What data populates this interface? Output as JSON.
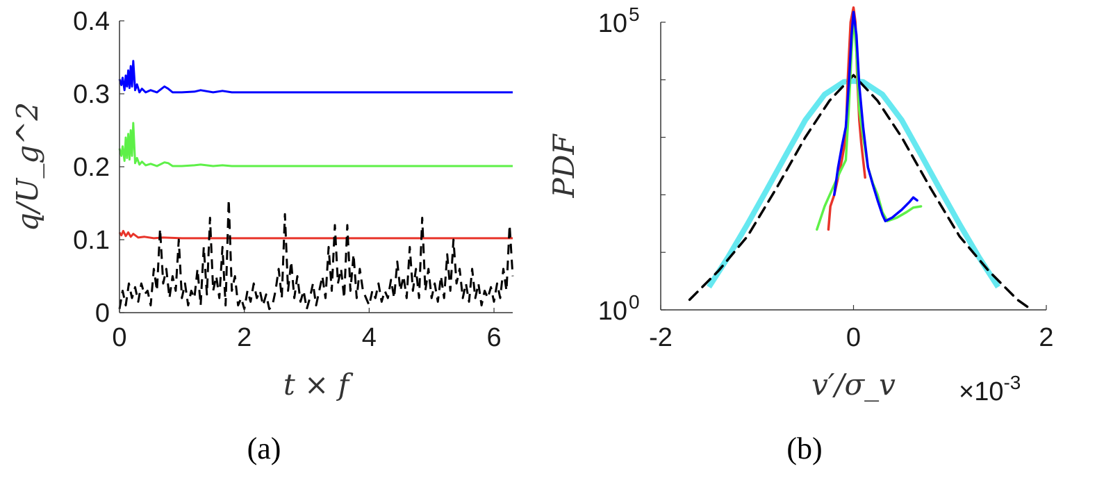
{
  "chart_data": [
    {
      "type": "line",
      "panel_label": "(a)",
      "xlabel": "t × f",
      "ylabel": "q/U_g^2",
      "xlim": [
        0,
        6.3
      ],
      "ylim": [
        0,
        0.4
      ],
      "xticks": [
        "0",
        "2",
        "4",
        "6"
      ],
      "yticks": [
        "0",
        "0.1",
        "0.2",
        "0.3",
        "0.4"
      ],
      "legend": "none",
      "grid": false,
      "series": [
        {
          "color": "#0000ff",
          "style": "solid",
          "x": [
            0,
            0.03,
            0.05,
            0.08,
            0.1,
            0.12,
            0.14,
            0.16,
            0.18,
            0.2,
            0.22,
            0.25,
            0.28,
            0.32,
            0.36,
            0.42,
            0.5,
            0.6,
            0.72,
            0.78,
            0.85,
            1.0,
            1.2,
            1.3,
            1.5,
            1.65,
            1.8,
            2.0,
            2.5,
            3.0,
            3.5,
            4.0,
            4.5,
            5.0,
            5.5,
            6.0,
            6.3
          ],
          "y": [
            0.32,
            0.312,
            0.322,
            0.305,
            0.325,
            0.31,
            0.332,
            0.308,
            0.338,
            0.31,
            0.345,
            0.305,
            0.313,
            0.302,
            0.307,
            0.302,
            0.305,
            0.302,
            0.31,
            0.307,
            0.302,
            0.302,
            0.303,
            0.305,
            0.302,
            0.304,
            0.302,
            0.302,
            0.302,
            0.302,
            0.302,
            0.302,
            0.302,
            0.302,
            0.302,
            0.302,
            0.302
          ]
        },
        {
          "color": "#5ef048",
          "style": "solid",
          "x": [
            0,
            0.03,
            0.05,
            0.08,
            0.1,
            0.12,
            0.14,
            0.16,
            0.18,
            0.2,
            0.22,
            0.25,
            0.28,
            0.32,
            0.36,
            0.42,
            0.5,
            0.6,
            0.72,
            0.78,
            0.85,
            1.0,
            1.2,
            1.3,
            1.5,
            1.65,
            1.8,
            2.0,
            2.5,
            3.0,
            3.5,
            4.0,
            4.5,
            5.0,
            5.5,
            6.0,
            6.3
          ],
          "y": [
            0.225,
            0.215,
            0.228,
            0.208,
            0.24,
            0.212,
            0.245,
            0.21,
            0.25,
            0.215,
            0.26,
            0.205,
            0.212,
            0.203,
            0.207,
            0.202,
            0.204,
            0.201,
            0.206,
            0.205,
            0.201,
            0.201,
            0.202,
            0.203,
            0.201,
            0.202,
            0.201,
            0.201,
            0.201,
            0.201,
            0.201,
            0.201,
            0.201,
            0.201,
            0.201,
            0.201,
            0.201
          ]
        },
        {
          "color": "#e8342a",
          "style": "solid",
          "x": [
            0,
            0.03,
            0.06,
            0.1,
            0.14,
            0.18,
            0.22,
            0.3,
            0.4,
            0.55,
            0.7,
            1.0,
            1.5,
            2.0,
            2.5,
            3.0,
            3.5,
            4.0,
            4.5,
            5.0,
            5.5,
            6.0,
            6.3
          ],
          "y": [
            0.11,
            0.106,
            0.112,
            0.105,
            0.11,
            0.104,
            0.108,
            0.103,
            0.104,
            0.102,
            0.103,
            0.102,
            0.102,
            0.102,
            0.102,
            0.102,
            0.102,
            0.102,
            0.102,
            0.102,
            0.102,
            0.102,
            0.102
          ]
        },
        {
          "color": "#000000",
          "style": "dashed",
          "x": [
            0.0,
            0.05,
            0.1,
            0.15,
            0.2,
            0.25,
            0.3,
            0.35,
            0.4,
            0.45,
            0.5,
            0.55,
            0.6,
            0.65,
            0.7,
            0.75,
            0.8,
            0.85,
            0.9,
            0.95,
            1.0,
            1.05,
            1.1,
            1.15,
            1.2,
            1.25,
            1.3,
            1.35,
            1.4,
            1.45,
            1.5,
            1.55,
            1.6,
            1.65,
            1.7,
            1.75,
            1.8,
            1.85,
            1.9,
            1.95,
            2.0,
            2.05,
            2.1,
            2.15,
            2.2,
            2.25,
            2.3,
            2.35,
            2.4,
            2.45,
            2.5,
            2.55,
            2.6,
            2.65,
            2.7,
            2.75,
            2.8,
            2.85,
            2.9,
            2.95,
            3.0,
            3.05,
            3.1,
            3.15,
            3.2,
            3.25,
            3.3,
            3.35,
            3.4,
            3.45,
            3.5,
            3.55,
            3.6,
            3.65,
            3.7,
            3.75,
            3.8,
            3.85,
            3.9,
            3.95,
            4.0,
            4.05,
            4.1,
            4.15,
            4.2,
            4.25,
            4.3,
            4.35,
            4.4,
            4.45,
            4.5,
            4.55,
            4.6,
            4.65,
            4.7,
            4.75,
            4.8,
            4.85,
            4.9,
            4.95,
            5.0,
            5.05,
            5.1,
            5.15,
            5.2,
            5.25,
            5.3,
            5.35,
            5.4,
            5.45,
            5.5,
            5.55,
            5.6,
            5.65,
            5.7,
            5.75,
            5.8,
            5.85,
            5.9,
            5.95,
            6.0,
            6.05,
            6.1,
            6.15,
            6.2,
            6.25,
            6.3
          ],
          "y": [
            0.005,
            0.03,
            0.01,
            0.04,
            0.02,
            0.035,
            0.015,
            0.04,
            0.025,
            0.03,
            0.01,
            0.06,
            0.03,
            0.115,
            0.04,
            0.06,
            0.02,
            0.05,
            0.03,
            0.1,
            0.02,
            0.04,
            0.01,
            0.03,
            0.02,
            0.06,
            0.01,
            0.09,
            0.025,
            0.13,
            0.03,
            0.05,
            0.02,
            0.09,
            0.01,
            0.155,
            0.03,
            0.05,
            0.01,
            0.02,
            0.005,
            0.03,
            0.015,
            0.04,
            0.02,
            0.03,
            0.01,
            0.025,
            0.005,
            0.01,
            0.03,
            0.06,
            0.02,
            0.135,
            0.03,
            0.07,
            0.02,
            0.05,
            0.015,
            0.03,
            0.005,
            0.02,
            0.04,
            0.01,
            0.03,
            0.05,
            0.02,
            0.09,
            0.03,
            0.12,
            0.04,
            0.06,
            0.02,
            0.12,
            0.03,
            0.08,
            0.02,
            0.06,
            0.03,
            0.02,
            0.01,
            0.03,
            0.02,
            0.04,
            0.015,
            0.03,
            0.02,
            0.045,
            0.02,
            0.07,
            0.03,
            0.05,
            0.02,
            0.09,
            0.03,
            0.06,
            0.02,
            0.13,
            0.03,
            0.06,
            0.02,
            0.04,
            0.015,
            0.05,
            0.02,
            0.08,
            0.03,
            0.1,
            0.04,
            0.06,
            0.02,
            0.04,
            0.015,
            0.06,
            0.02,
            0.04,
            0.01,
            0.03,
            0.02,
            0.035,
            0.015,
            0.04,
            0.02,
            0.06,
            0.03,
            0.12,
            0.05
          ]
        }
      ]
    },
    {
      "type": "line",
      "panel_label": "(b)",
      "xlabel": "v′/σ_v",
      "ylabel": "PDF",
      "x_multiplier": "×10",
      "x_multiplier_exponent": "-3",
      "xlim": [
        -2,
        2
      ],
      "xticks": [
        "-2",
        "0",
        "2"
      ],
      "yscale": "log",
      "ylim": [
        1,
        100000
      ],
      "yticks": [
        {
          "base": "10",
          "exp": "0"
        },
        {
          "base": "10",
          "exp": "5"
        }
      ],
      "legend": "none",
      "grid": false,
      "series": [
        {
          "color": "#66e8f0",
          "style": "solid",
          "x": [
            -1.5,
            -1.3,
            -1.1,
            -0.9,
            -0.7,
            -0.5,
            -0.3,
            -0.1,
            0.0,
            0.1,
            0.3,
            0.5,
            0.7,
            0.9,
            1.1,
            1.3,
            1.5
          ],
          "y": [
            2.5,
            8.3,
            30.9,
            122,
            498,
            1990,
            5550,
            9200,
            9500,
            9200,
            5550,
            1990,
            498,
            122,
            30.9,
            8.3,
            2.5
          ]
        },
        {
          "color": "#000000",
          "style": "dashed",
          "x": [
            -1.7,
            -1.4,
            -1.1,
            -0.8,
            -0.5,
            -0.25,
            0.0,
            0.25,
            0.5,
            0.8,
            1.1,
            1.4,
            1.7,
            1.85
          ],
          "y": [
            1.5,
            4.8,
            19,
            130,
            1000,
            4300,
            12000,
            4300,
            1000,
            130,
            19,
            4.8,
            1.5,
            1.0
          ]
        },
        {
          "color": "#e8342a",
          "style": "solid",
          "x": [
            -0.26,
            -0.24,
            -0.2,
            -0.16,
            -0.12,
            -0.08,
            -0.06,
            -0.03,
            0.0,
            0.02,
            0.04,
            0.06,
            0.08,
            0.1,
            0.12
          ],
          "y": [
            25,
            63,
            100,
            200,
            400,
            1000,
            10000,
            100000,
            180000,
            100000,
            10000,
            2000,
            800,
            400,
            200
          ]
        },
        {
          "color": "#5ef048",
          "style": "solid",
          "x": [
            -0.38,
            -0.3,
            -0.2,
            -0.14,
            -0.08,
            -0.05,
            -0.02,
            0.0,
            0.03,
            0.06,
            0.1,
            0.15,
            0.2,
            0.25,
            0.3,
            0.35,
            0.45,
            0.55,
            0.62,
            0.7
          ],
          "y": [
            25,
            63,
            150,
            250,
            400,
            3000,
            30000,
            130000,
            30000,
            3000,
            1000,
            300,
            160,
            100,
            50,
            35,
            40,
            50,
            60,
            63
          ]
        },
        {
          "color": "#0000ff",
          "style": "solid",
          "x": [
            -0.2,
            -0.16,
            -0.12,
            -0.08,
            -0.05,
            -0.02,
            0.0,
            0.03,
            0.06,
            0.1,
            0.15,
            0.2,
            0.25,
            0.3,
            0.33,
            0.4,
            0.5,
            0.58,
            0.62,
            0.66
          ],
          "y": [
            100,
            300,
            700,
            1500,
            8000,
            60000,
            150000,
            60000,
            8000,
            1500,
            300,
            150,
            80,
            45,
            35,
            40,
            55,
            75,
            90,
            80
          ]
        }
      ]
    }
  ]
}
